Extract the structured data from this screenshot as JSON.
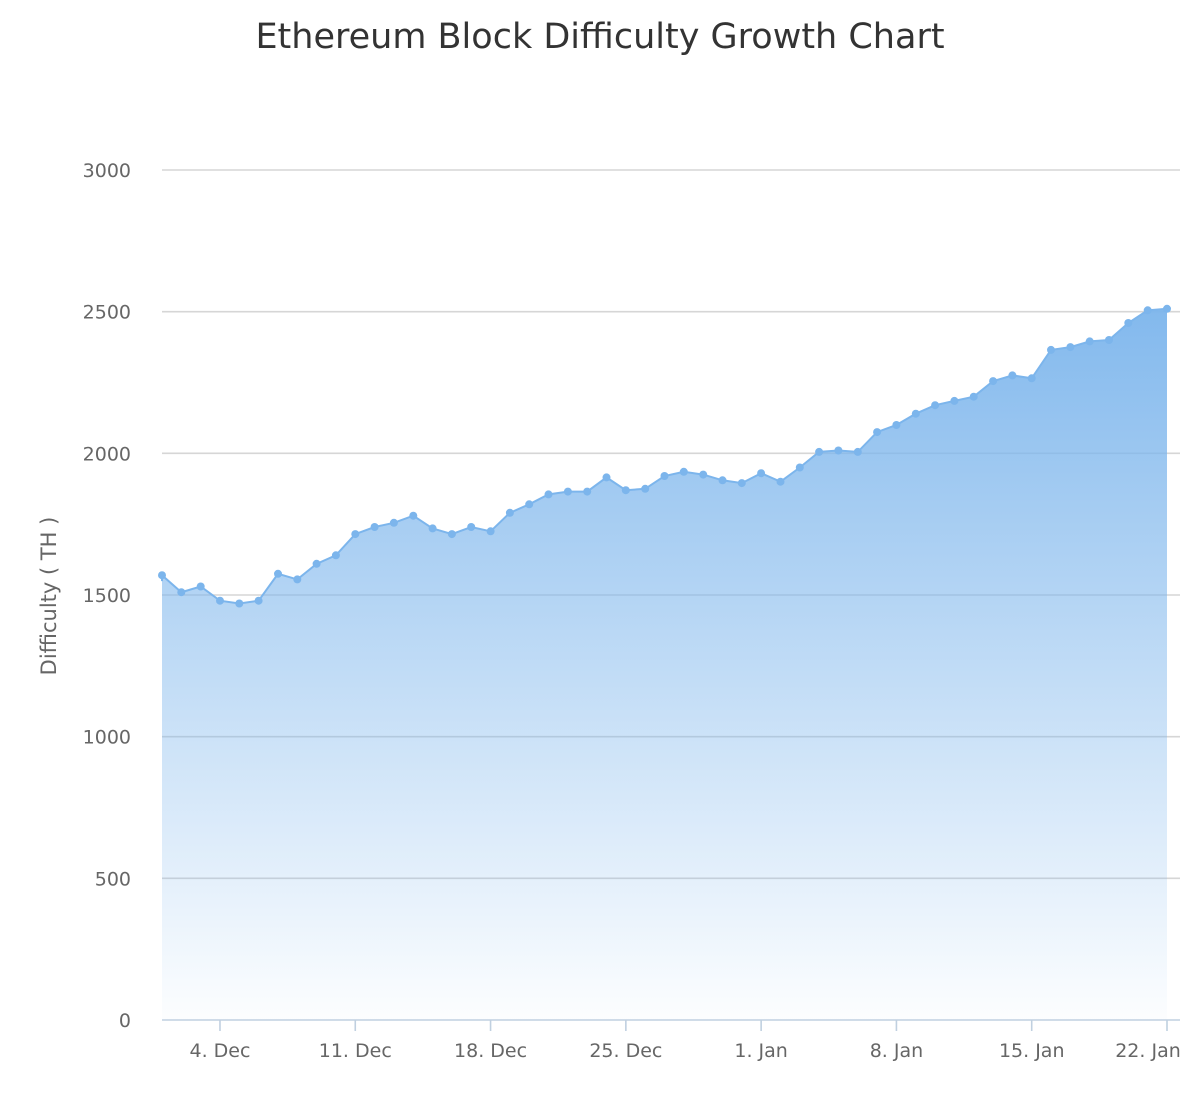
{
  "chart_data": {
    "type": "area",
    "title": "Ethereum Block Difficulty Growth Chart",
    "xlabel": "",
    "ylabel": "Difficulty ( TH )",
    "xlim": [
      "2017-12-01",
      "2018-01-22"
    ],
    "ylim": [
      0,
      3000
    ],
    "y_ticks": [
      0,
      500,
      1000,
      1500,
      2000,
      2500,
      3000
    ],
    "x_ticks": [
      {
        "date": "2017-12-04",
        "label": "4. Dec"
      },
      {
        "date": "2017-12-11",
        "label": "11. Dec"
      },
      {
        "date": "2017-12-18",
        "label": "18. Dec"
      },
      {
        "date": "2017-12-25",
        "label": "25. Dec"
      },
      {
        "date": "2018-01-01",
        "label": "1. Jan"
      },
      {
        "date": "2018-01-08",
        "label": "8. Jan"
      },
      {
        "date": "2018-01-15",
        "label": "15. Jan"
      },
      {
        "date": "2018-01-22",
        "label": "22. Jan"
      }
    ],
    "grid": true,
    "legend": "none",
    "colors": {
      "series": "#7cb5ec",
      "grid": "#d6d6d6",
      "axis": "#c0d0e0"
    },
    "series": [
      {
        "x": [
          "2017-12-01",
          "2017-12-02",
          "2017-12-03",
          "2017-12-04",
          "2017-12-05",
          "2017-12-06",
          "2017-12-07",
          "2017-12-08",
          "2017-12-09",
          "2017-12-10",
          "2017-12-11",
          "2017-12-12",
          "2017-12-13",
          "2017-12-14",
          "2017-12-15",
          "2017-12-16",
          "2017-12-17",
          "2017-12-18",
          "2017-12-19",
          "2017-12-20",
          "2017-12-21",
          "2017-12-22",
          "2017-12-23",
          "2017-12-24",
          "2017-12-25",
          "2017-12-26",
          "2017-12-27",
          "2017-12-28",
          "2017-12-29",
          "2017-12-30",
          "2017-12-31",
          "2018-01-01",
          "2018-01-02",
          "2018-01-03",
          "2018-01-04",
          "2018-01-05",
          "2018-01-06",
          "2018-01-07",
          "2018-01-08",
          "2018-01-09",
          "2018-01-10",
          "2018-01-11",
          "2018-01-12",
          "2018-01-13",
          "2018-01-14",
          "2018-01-15",
          "2018-01-16",
          "2018-01-17",
          "2018-01-18",
          "2018-01-19",
          "2018-01-20",
          "2018-01-21",
          "2018-01-22"
        ],
        "values": [
          1570,
          1510,
          1530,
          1480,
          1470,
          1480,
          1575,
          1555,
          1610,
          1640,
          1715,
          1740,
          1755,
          1780,
          1735,
          1715,
          1740,
          1725,
          1790,
          1820,
          1855,
          1865,
          1865,
          1915,
          1870,
          1875,
          1920,
          1935,
          1925,
          1905,
          1895,
          1930,
          1900,
          1950,
          2005,
          2010,
          2005,
          2075,
          2100,
          2140,
          2170,
          2185,
          2200,
          2255,
          2275,
          2265,
          2365,
          2375,
          2395,
          2400,
          2460,
          2505,
          2510
        ]
      }
    ]
  }
}
